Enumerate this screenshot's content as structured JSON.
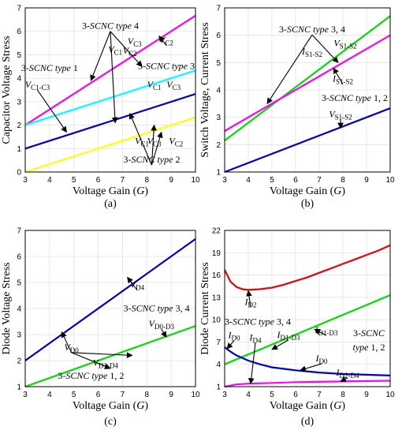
{
  "chart_data": [
    {
      "type": "line",
      "panel": "(a)",
      "xlabel": "Voltage Gain (G)",
      "ylabel": "Capacitor Voltage Stress",
      "xlim": [
        3,
        10
      ],
      "ylim": [
        0,
        7
      ],
      "xticks": [
        "3",
        "4",
        "5",
        "6",
        "7",
        "8",
        "9",
        "10"
      ],
      "yticks": [
        "0",
        "1",
        "2",
        "3",
        "4",
        "5",
        "6",
        "7"
      ],
      "grid": true,
      "series": [
        {
          "color": "#ff00ff",
          "x": [
            3,
            10
          ],
          "y": [
            2.0,
            6.67
          ]
        },
        {
          "color": "#00ffff",
          "x": [
            3,
            10
          ],
          "y": [
            2.0,
            4.33
          ]
        },
        {
          "color": "#0000cc",
          "x": [
            3,
            10
          ],
          "y": [
            1.0,
            3.33
          ]
        },
        {
          "color": "#ffff00",
          "x": [
            3,
            10
          ],
          "y": [
            0.0,
            2.33
          ]
        }
      ],
      "annotations": [
        {
          "text": "3-SCNC type 4",
          "x": 6.5,
          "y": 6.1,
          "arrows": [
            [
              5.7,
              3.9
            ],
            [
              6.7,
              2.1
            ],
            [
              7.8,
              4.5
            ]
          ]
        },
        {
          "text": "VC3",
          "x": 7.5,
          "y": 5.45
        },
        {
          "text": "VC1",
          "x": 6.7,
          "y": 5.1
        },
        {
          "text": "VC2",
          "x": 7.3,
          "y": 5.05
        },
        {
          "text": "VC2",
          "x": 8.8,
          "y": 5.5,
          "arrows": [
            [
              8.5,
              5.8
            ]
          ]
        },
        {
          "text": "3-SCNC type 3",
          "x": 8.8,
          "y": 4.4
        },
        {
          "text": "VC1",
          "x": 8.3,
          "y": 3.6
        },
        {
          "text": "VC3",
          "x": 9.1,
          "y": 3.6
        },
        {
          "text": "3-SCNC type 1",
          "x": 4.0,
          "y": 4.3
        },
        {
          "text": "VC1-C3",
          "x": 3.5,
          "y": 3.6,
          "arrows": [
            [
              4.7,
              1.7
            ]
          ]
        },
        {
          "text": "VC1",
          "x": 7.8,
          "y": 1.2
        },
        {
          "text": "VC3",
          "x": 8.3,
          "y": 1.2
        },
        {
          "text": "VC2",
          "x": 9.2,
          "y": 1.2
        },
        {
          "text": "3-SCNC type 2",
          "x": 8.2,
          "y": 0.4,
          "arrows": [
            [
              7.3,
              2.5
            ],
            [
              8.3,
              2.0
            ],
            [
              8.6,
              1.7
            ]
          ]
        }
      ]
    },
    {
      "type": "line",
      "panel": "(b)",
      "xlabel": "Voltage Gain (G)",
      "ylabel": "Switch Voltage, Current Stress",
      "xlim": [
        3,
        10
      ],
      "ylim": [
        1,
        7
      ],
      "xticks": [
        "3",
        "4",
        "5",
        "6",
        "7",
        "8",
        "9",
        "10"
      ],
      "yticks": [
        "1",
        "2",
        "3",
        "4",
        "5",
        "6",
        "7"
      ],
      "grid": true,
      "series": [
        {
          "color": "#00dd00",
          "x": [
            3,
            10
          ],
          "y": [
            2.15,
            6.7
          ]
        },
        {
          "color": "#ff00ff",
          "x": [
            3,
            10
          ],
          "y": [
            2.5,
            6.0
          ]
        },
        {
          "color": "#0000cc",
          "x": [
            3,
            10
          ],
          "y": [
            1.0,
            3.33
          ]
        }
      ],
      "annotations": [
        {
          "text": "3-SCNC type 3, 4",
          "x": 6.7,
          "y": 6.1,
          "arrows": [
            [
              4.8,
              3.5
            ],
            [
              7.8,
              5.0
            ]
          ]
        },
        {
          "text": "IS1-S2",
          "x": 6.7,
          "y": 5.3
        },
        {
          "text": "VS1-S2",
          "x": 8.1,
          "y": 5.6
        },
        {
          "text": "IS1-S2",
          "x": 8.0,
          "y": 4.3,
          "arrows": [
            [
              7.6,
              4.8
            ]
          ]
        },
        {
          "text": "3-SCNC type 1, 2",
          "x": 8.5,
          "y": 3.6
        },
        {
          "text": "VS1-S2",
          "x": 7.9,
          "y": 3.0,
          "arrows": [
            [
              7.9,
              2.6
            ]
          ]
        }
      ]
    },
    {
      "type": "line",
      "panel": "(c)",
      "xlabel": "Voltage Gain (G)",
      "ylabel": "Diode Voltage Stress",
      "xlim": [
        3,
        10
      ],
      "ylim": [
        1,
        7
      ],
      "xticks": [
        "3",
        "4",
        "5",
        "6",
        "7",
        "8",
        "9",
        "10"
      ],
      "yticks": [
        "1",
        "2",
        "3",
        "4",
        "5",
        "6",
        "7"
      ],
      "grid": true,
      "series": [
        {
          "color": "#0000cc",
          "x": [
            3,
            10
          ],
          "y": [
            2.0,
            6.67
          ]
        },
        {
          "color": "#00dd00",
          "x": [
            3,
            10
          ],
          "y": [
            1.0,
            3.33
          ]
        }
      ],
      "annotations": [
        {
          "text": "VD4",
          "x": 7.6,
          "y": 4.8,
          "arrows": [
            [
              7.2,
              5.2
            ]
          ]
        },
        {
          "text": "3-SCNC type 3, 4",
          "x": 8.4,
          "y": 3.9
        },
        {
          "text": "VD0-D3",
          "x": 8.6,
          "y": 3.3,
          "arrows": [
            [
              8.8,
              2.9
            ]
          ]
        },
        {
          "text": "VD0",
          "x": 4.9,
          "y": 2.4,
          "arrows": [
            [
              4.5,
              3.1
            ],
            [
              6.5,
              1.7
            ],
            [
              7.4,
              2.2
            ]
          ]
        },
        {
          "text": "VD1-D4",
          "x": 6.3,
          "y": 1.8
        },
        {
          "text": "3-SCNC type 1, 2",
          "x": 5.7,
          "y": 1.3
        }
      ]
    },
    {
      "type": "line",
      "panel": "(d)",
      "xlabel": "Voltage Gain (G)",
      "ylabel": "Diode Current Stress",
      "xlim": [
        3,
        10
      ],
      "ylim": [
        1,
        22
      ],
      "xticks": [
        "3",
        "4",
        "5",
        "6",
        "7",
        "8",
        "9",
        "10"
      ],
      "yticks": [
        "1",
        "4",
        "7",
        "10",
        "13",
        "16",
        "19",
        "22"
      ],
      "grid": true,
      "series": [
        {
          "color": "#ee0000",
          "x": [
            3,
            3.25,
            3.5,
            3.75,
            4,
            4.5,
            5,
            5.5,
            6,
            6.5,
            7,
            7.5,
            8,
            8.5,
            9,
            9.5,
            10
          ],
          "y": [
            16.7,
            15.1,
            14.4,
            14.1,
            14.0,
            14.1,
            14.3,
            14.7,
            15.2,
            15.7,
            16.3,
            16.9,
            17.5,
            18.1,
            18.7,
            19.3,
            20.0
          ]
        },
        {
          "color": "#00dd00",
          "x": [
            3,
            10
          ],
          "y": [
            4.0,
            13.3
          ]
        },
        {
          "color": "#0000cc",
          "x": [
            3,
            3.25,
            3.5,
            4,
            4.5,
            5,
            5.5,
            6,
            7,
            8,
            9,
            10
          ],
          "y": [
            6.3,
            5.7,
            5.2,
            4.5,
            4.0,
            3.6,
            3.4,
            3.2,
            2.9,
            2.7,
            2.6,
            2.5
          ]
        },
        {
          "color": "#ff00ff",
          "x": [
            3,
            3.5,
            4,
            5,
            6,
            7,
            8,
            9,
            10
          ],
          "y": [
            1.0,
            1.3,
            1.4,
            1.5,
            1.6,
            1.65,
            1.7,
            1.75,
            1.8
          ]
        }
      ],
      "annotations": [
        {
          "text": "ID2",
          "x": 4.1,
          "y": 12.0,
          "arrows": [
            [
              4.0,
              13.9
            ]
          ]
        },
        {
          "text": "3-SCNC type 3, 4",
          "x": 4.4,
          "y": 9.3
        },
        {
          "text": "ID0",
          "x": 3.4,
          "y": 7.5,
          "arrows": [
            [
              3.1,
              6.1
            ]
          ]
        },
        {
          "text": "ID4",
          "x": 4.3,
          "y": 7.2,
          "arrows": [
            [
              4.1,
              1.4
            ]
          ]
        },
        {
          "text": "ID1-D3",
          "x": 5.7,
          "y": 7.6,
          "arrows": [
            [
              5.0,
              6.0
            ]
          ]
        },
        {
          "text": "ID1-D3",
          "x": 7.3,
          "y": 8.2,
          "arrows": [
            [
              6.8,
              8.7
            ]
          ]
        },
        {
          "text": "3-SCNC",
          "x": 9.1,
          "y": 7.8
        },
        {
          "text": "type 1, 2",
          "x": 9.1,
          "y": 5.9
        },
        {
          "text": "ID0",
          "x": 7.1,
          "y": 4.4,
          "arrows": [
            [
              6.2,
              3.2
            ]
          ]
        },
        {
          "text": "ID2-D4",
          "x": 8.2,
          "y": 2.5,
          "arrows": [
            [
              7.9,
              1.7
            ]
          ]
        }
      ]
    }
  ]
}
